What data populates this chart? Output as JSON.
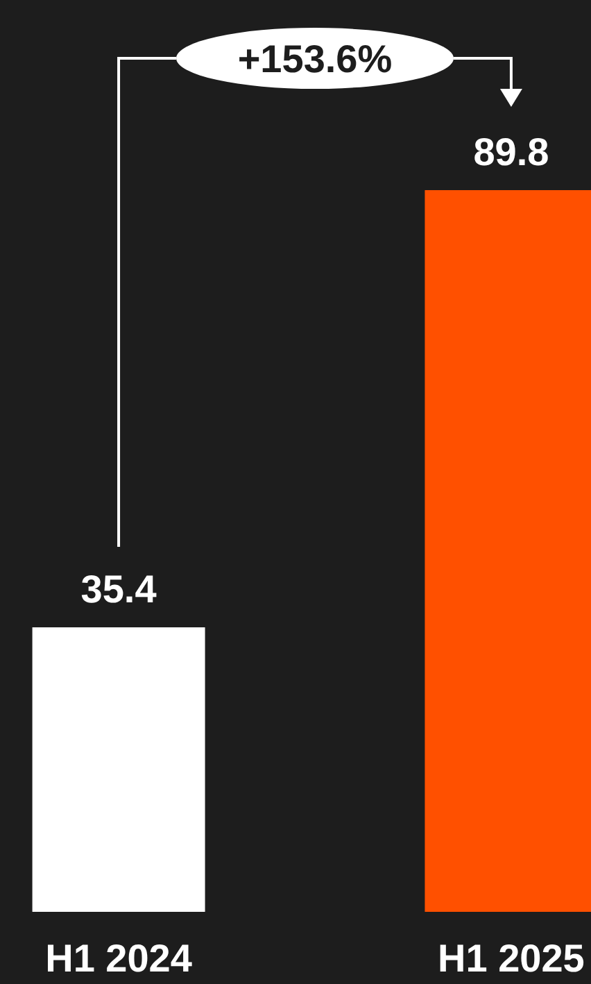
{
  "chart_data": {
    "type": "bar",
    "categories": [
      "H1 2024",
      "H1 2025"
    ],
    "values": [
      35.4,
      89.8
    ],
    "colors": [
      "#ffffff",
      "#ff5000"
    ],
    "data_labels": true,
    "annotations": [
      "+153.6%"
    ]
  }
}
